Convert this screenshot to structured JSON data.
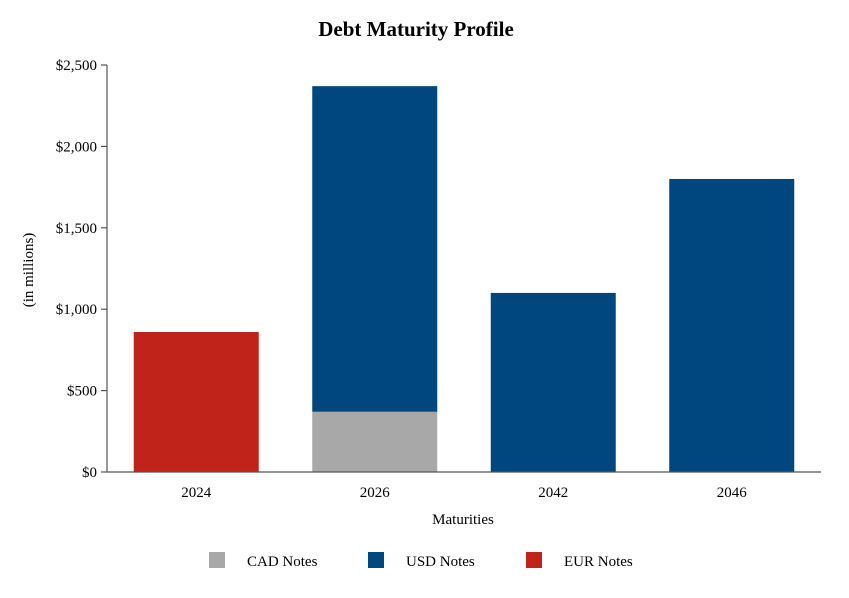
{
  "chart_data": {
    "type": "bar",
    "stacked": true,
    "title": "Debt Maturity Profile",
    "xlabel": "Maturities",
    "ylabel": "(in millions)",
    "ylim": [
      0,
      2500
    ],
    "yticks": [
      0,
      500,
      1000,
      1500,
      2000,
      2500
    ],
    "ytick_labels": [
      "$0",
      "$500",
      "$1,000",
      "$1,500",
      "$2,000",
      "$2,500"
    ],
    "categories": [
      "2024",
      "2026",
      "2042",
      "2046"
    ],
    "series": [
      {
        "name": "CAD Notes",
        "color": "#a8a8a8",
        "values": [
          0,
          370,
          0,
          0
        ]
      },
      {
        "name": "USD Notes",
        "color": "#00467f",
        "values": [
          0,
          2000,
          1100,
          1800
        ]
      },
      {
        "name": "EUR Notes",
        "color": "#c0231a",
        "values": [
          860,
          0,
          0,
          0
        ]
      }
    ],
    "grid": false,
    "legend_position": "bottom"
  }
}
